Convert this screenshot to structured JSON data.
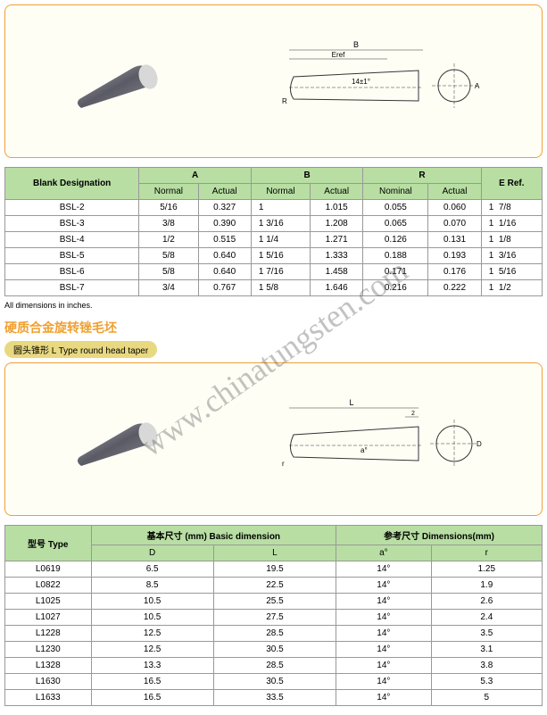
{
  "diagram1": {
    "angle_label": "14±1°",
    "dim_labels": [
      "B",
      "Eref",
      "A",
      "R"
    ],
    "cone_color": "#7a7a85",
    "tip_color": "#d5d5d5",
    "box_border": "#f0a030",
    "box_bg": "#fffef5"
  },
  "table1": {
    "header_bg": "#b8dea3",
    "caption_left": "Blank Designation",
    "groups": [
      "A",
      "B",
      "R",
      "E Ref."
    ],
    "subheaders": [
      "Normal",
      "Actual",
      "Normal",
      "Actual",
      "Nominal",
      "Actual"
    ],
    "rows": [
      {
        "name": "BSL-2",
        "a_n": "5/16",
        "a_a": "0.327",
        "b_n": "1",
        "b_a": "1.015",
        "r_n": "0.055",
        "r_a": "0.060",
        "e": "7/8",
        "e_pre": "1"
      },
      {
        "name": "BSL-3",
        "a_n": "3/8",
        "a_a": "0.390",
        "b_n": "1  3/16",
        "b_a": "1.208",
        "r_n": "0.065",
        "r_a": "0.070",
        "e": "1/16",
        "e_pre": "1"
      },
      {
        "name": "BSL-4",
        "a_n": "1/2",
        "a_a": "0.515",
        "b_n": "1  1/4",
        "b_a": "1.271",
        "r_n": "0.126",
        "r_a": "0.131",
        "e": "1/8",
        "e_pre": "1"
      },
      {
        "name": "BSL-5",
        "a_n": "5/8",
        "a_a": "0.640",
        "b_n": "1  5/16",
        "b_a": "1.333",
        "r_n": "0.188",
        "r_a": "0.193",
        "e": "3/16",
        "e_pre": "1"
      },
      {
        "name": "BSL-6",
        "a_n": "5/8",
        "a_a": "0.640",
        "b_n": "1  7/16",
        "b_a": "1.458",
        "r_n": "0.171",
        "r_a": "0.176",
        "e": "5/16",
        "e_pre": "1"
      },
      {
        "name": "BSL-7",
        "a_n": "3/4",
        "a_a": "0.767",
        "b_n": "1  5/8",
        "b_a": "1.646",
        "r_n": "0.216",
        "r_a": "0.222",
        "e": "1/2",
        "e_pre": "1"
      }
    ],
    "note": "All dimensions in inches."
  },
  "section2": {
    "title_cn": "硬质合金旋转锉毛坯",
    "subtitle": "圆头锥形  L Type round head taper"
  },
  "diagram2": {
    "dim_labels": [
      "L",
      "r",
      "a°",
      "D"
    ],
    "cone_color": "#7a7a85",
    "tip_color": "#d5d5d5"
  },
  "table2": {
    "header_bg": "#b8dea3",
    "h_type": "型号 Type",
    "h_basic": "基本尺寸 (mm)   Basic dimension",
    "h_ref": "参考尺寸  Dimensions(mm)",
    "sub": [
      "D",
      "L",
      "a°",
      "r"
    ],
    "rows": [
      {
        "t": "L0619",
        "d": "6.5",
        "l": "19.5",
        "a": "14°",
        "r": "1.25"
      },
      {
        "t": "L0822",
        "d": "8.5",
        "l": "22.5",
        "a": "14°",
        "r": "1.9"
      },
      {
        "t": "L1025",
        "d": "10.5",
        "l": "25.5",
        "a": "14°",
        "r": "2.6"
      },
      {
        "t": "L1027",
        "d": "10.5",
        "l": "27.5",
        "a": "14°",
        "r": "2.4"
      },
      {
        "t": "L1228",
        "d": "12.5",
        "l": "28.5",
        "a": "14°",
        "r": "3.5"
      },
      {
        "t": "L1230",
        "d": "12.5",
        "l": "30.5",
        "a": "14°",
        "r": "3.1"
      },
      {
        "t": "L1328",
        "d": "13.3",
        "l": "28.5",
        "a": "14°",
        "r": "3.8"
      },
      {
        "t": "L1630",
        "d": "16.5",
        "l": "30.5",
        "a": "14°",
        "r": "5.3"
      },
      {
        "t": "L1633",
        "d": "16.5",
        "l": "33.5",
        "a": "14°",
        "r": "5"
      }
    ]
  },
  "watermark": "www.chinatungsten.com"
}
